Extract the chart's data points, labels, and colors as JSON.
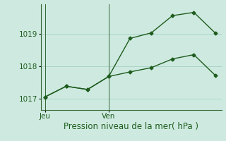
{
  "line1_x": [
    0,
    1,
    2,
    3,
    4,
    5,
    6,
    7,
    8
  ],
  "line1_y": [
    1017.05,
    1017.38,
    1017.28,
    1017.68,
    1018.85,
    1019.02,
    1019.55,
    1019.65,
    1019.02
  ],
  "line2_x": [
    0,
    1,
    2,
    3,
    4,
    5,
    6,
    7,
    8
  ],
  "line2_y": [
    1017.05,
    1017.38,
    1017.28,
    1017.68,
    1017.82,
    1017.95,
    1018.22,
    1018.35,
    1017.72
  ],
  "line_color": "#1e5c1e",
  "marker": "D",
  "markersize": 2.5,
  "linewidth": 1.0,
  "yticks": [
    1017,
    1018,
    1019
  ],
  "ylim": [
    1016.65,
    1019.9
  ],
  "xlim": [
    -0.2,
    8.3
  ],
  "xtick_positions": [
    0,
    3
  ],
  "xtick_labels": [
    "Jeu",
    "Ven"
  ],
  "xlabel": "Pression niveau de la mer( hPa )",
  "bg_color": "#ceeae0",
  "grid_color": "#aad4c8",
  "axis_color": "#336633",
  "text_color": "#1e5c1e",
  "xlabel_fontsize": 8.5,
  "tick_fontsize": 7.5
}
